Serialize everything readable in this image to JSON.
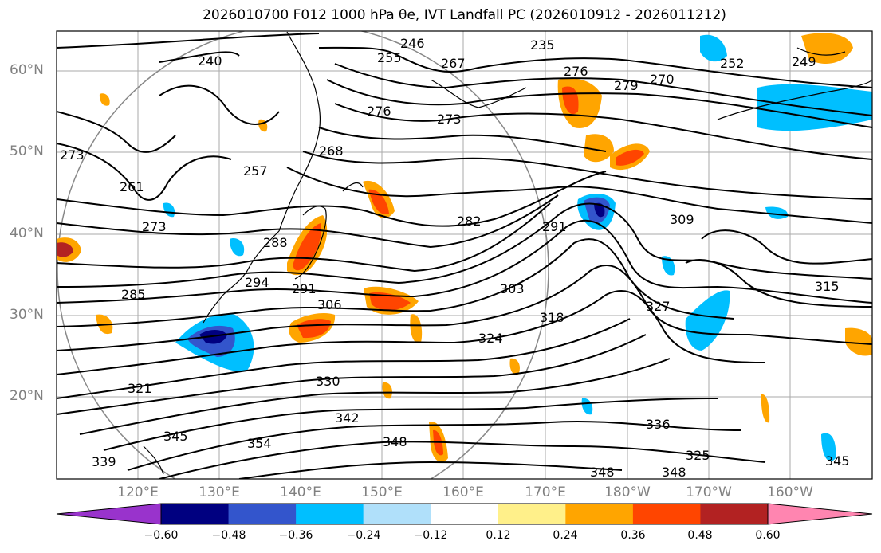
{
  "title": "2026010700 F012 1000 hPa θe, IVT Landfall PC (2026010912 - 2026011212)",
  "map": {
    "lat_labels": [
      "60°N",
      "50°N",
      "40°N",
      "30°N",
      "20°N"
    ],
    "lon_labels": [
      "120°E",
      "130°E",
      "140°E",
      "150°E",
      "160°E",
      "170°E",
      "180°W",
      "170°W",
      "160°W"
    ],
    "contour_labels": [
      "240",
      "246",
      "255",
      "267",
      "235",
      "276",
      "270",
      "279",
      "249",
      "252",
      "273",
      "276",
      "273",
      "268",
      "257",
      "261",
      "273",
      "282",
      "291",
      "309",
      "288",
      "294",
      "291",
      "285",
      "303",
      "327",
      "315",
      "306",
      "318",
      "324",
      "330",
      "342",
      "348",
      "336",
      "345",
      "354",
      "339",
      "348",
      "348",
      "345",
      "325",
      "321"
    ],
    "coastline_color": "#000000",
    "graticule_color": "#999999"
  },
  "colorbar": {
    "ticks": [
      "−0.60",
      "−0.48",
      "−0.36",
      "−0.24",
      "−0.12",
      "0.12",
      "0.24",
      "0.36",
      "0.48",
      "0.60"
    ],
    "colors": [
      "#9933cc",
      "#000080",
      "#3355cc",
      "#00bfff",
      "#b0e0fa",
      "#ffffff",
      "#fff08a",
      "#ffa500",
      "#ff4500",
      "#b22222",
      "#ff85b0"
    ]
  }
}
